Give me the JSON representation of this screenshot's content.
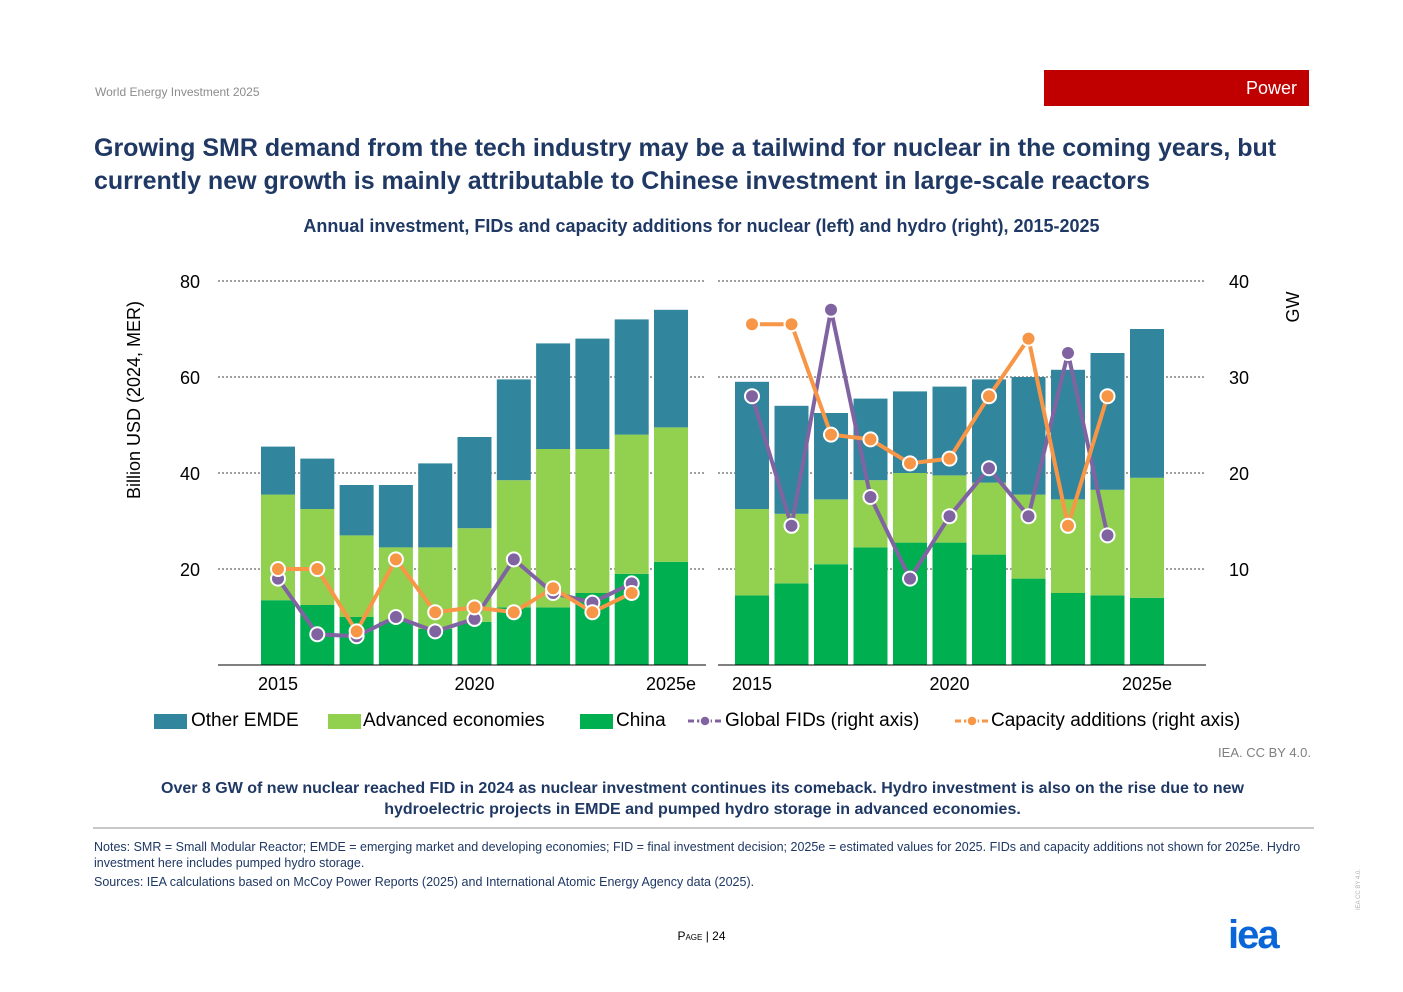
{
  "header": {
    "doc_title": "World Energy Investment 2025",
    "section_tag": "Power",
    "headline": "Growing SMR demand from the tech industry may be a tailwind for nuclear in the coming years, but currently new growth is mainly attributable to Chinese investment in large-scale reactors"
  },
  "colors": {
    "other_emde": "#31859c",
    "advanced": "#92d050",
    "china": "#00b050",
    "fids": "#8064a2",
    "capacity": "#f79646",
    "section_tag": "#c00000",
    "logo": "#0a66d8"
  },
  "chart_data": {
    "type": "bar",
    "title": "Annual investment, FIDs and capacity additions for nuclear (left) and hydro (right), 2015-2025",
    "ylabel": "Billion USD (2024, MER)",
    "ylabel_right": "GW",
    "ylim": [
      0,
      80
    ],
    "ylim_right": [
      0,
      40
    ],
    "yticks": [
      "20",
      "40",
      "60",
      "80"
    ],
    "yticks_right": [
      "10",
      "20",
      "30",
      "40"
    ],
    "xtick_labels": [
      "2015",
      "2020",
      "2025e"
    ],
    "categories": [
      "2015",
      "2016",
      "2017",
      "2018",
      "2019",
      "2020",
      "2021",
      "2022",
      "2023",
      "2024",
      "2025e"
    ],
    "panels": [
      {
        "name": "nuclear",
        "stacked": [
          {
            "name": "China",
            "values": [
              13.5,
              12.5,
              10,
              9,
              7.5,
              9,
              12,
              12,
              15,
              19,
              21.5
            ]
          },
          {
            "name": "Advanced economies",
            "values": [
              22,
              20,
              17,
              15.5,
              17,
              19.5,
              26.5,
              33,
              30,
              29,
              28
            ]
          },
          {
            "name": "Other EMDE",
            "values": [
              10,
              10.5,
              10.5,
              13,
              17.5,
              19,
              21,
              22,
              23,
              24,
              24.5
            ]
          }
        ],
        "lines": [
          {
            "name": "Global FIDs (right axis)",
            "values": [
              9,
              3.2,
              3,
              5,
              3.5,
              4.8,
              11,
              7.5,
              6.5,
              8.5,
              null
            ]
          },
          {
            "name": "Capacity additions (right axis)",
            "values": [
              10,
              10,
              3.5,
              11,
              5.5,
              6,
              5.5,
              8,
              5.5,
              7.5,
              null
            ]
          }
        ]
      },
      {
        "name": "hydro",
        "stacked": [
          {
            "name": "China",
            "values": [
              14.5,
              17,
              21,
              24.5,
              25.5,
              25.5,
              23,
              18,
              15,
              14.5,
              14
            ]
          },
          {
            "name": "Advanced economies",
            "values": [
              18,
              14.5,
              13.5,
              14,
              14.5,
              14,
              15,
              17.5,
              19.5,
              22,
              25
            ]
          },
          {
            "name": "Other EMDE",
            "values": [
              26.5,
              22.5,
              18,
              17,
              17,
              18.5,
              21.5,
              24.5,
              27,
              28.5,
              31
            ]
          }
        ],
        "lines": [
          {
            "name": "Global FIDs (right axis)",
            "values": [
              28,
              14.5,
              37,
              17.5,
              9,
              15.5,
              20.5,
              15.5,
              32.5,
              13.5,
              null
            ]
          },
          {
            "name": "Capacity additions (right axis)",
            "values": [
              35.5,
              35.5,
              24,
              23.5,
              21,
              21.5,
              28,
              34,
              14.5,
              28,
              null
            ]
          }
        ]
      }
    ],
    "legend": [
      "Other EMDE",
      "Advanced economies",
      "China",
      "Global FIDs (right axis)",
      "Capacity additions (right axis)"
    ]
  },
  "footer": {
    "credit": "IEA. CC BY 4.0.",
    "caption": "Over 8 GW of new nuclear reached FID in 2024 as nuclear investment continues its comeback. Hydro investment is also on the rise due to new hydroelectric projects in EMDE and pumped hydro storage in advanced economies.",
    "notes": "Notes: SMR = Small Modular Reactor; EMDE = emerging market and developing economies; FID = final investment decision; 2025e = estimated values for 2025. FIDs and capacity additions not shown for 2025e. Hydro investment here includes pumped hydro storage.",
    "sources": "Sources: IEA calculations based on McCoy Power Reports (2025) and International Atomic Energy Agency data (2025).",
    "page_word": "Page",
    "page_number": "24",
    "logo_text": "iea",
    "side_license": "IEA CC BY 4.0."
  }
}
